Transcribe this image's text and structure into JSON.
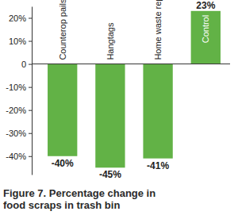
{
  "chart_data": {
    "type": "bar",
    "title": "Figure 7. Percentage change in food scraps in trash bin",
    "categories": [
      "Counterop pails",
      "Hangtags",
      "Home waste reports",
      "Control"
    ],
    "values": [
      -40,
      -45,
      -41,
      23
    ],
    "value_labels": [
      "-40%",
      "-45%",
      "-41%",
      "23%"
    ],
    "data_labels": true,
    "color": "#62b246",
    "ylim": [
      -48,
      25
    ],
    "yticks": [
      {
        "value": 20,
        "label": "20%"
      },
      {
        "value": 10,
        "label": "10%"
      },
      0,
      {
        "value": -10,
        "label": "-10%"
      },
      {
        "value": -20,
        "label": "-20%"
      },
      {
        "value": -30,
        "label": "-30%"
      },
      {
        "value": -40,
        "label": "-40%"
      }
    ],
    "grid": false
  }
}
